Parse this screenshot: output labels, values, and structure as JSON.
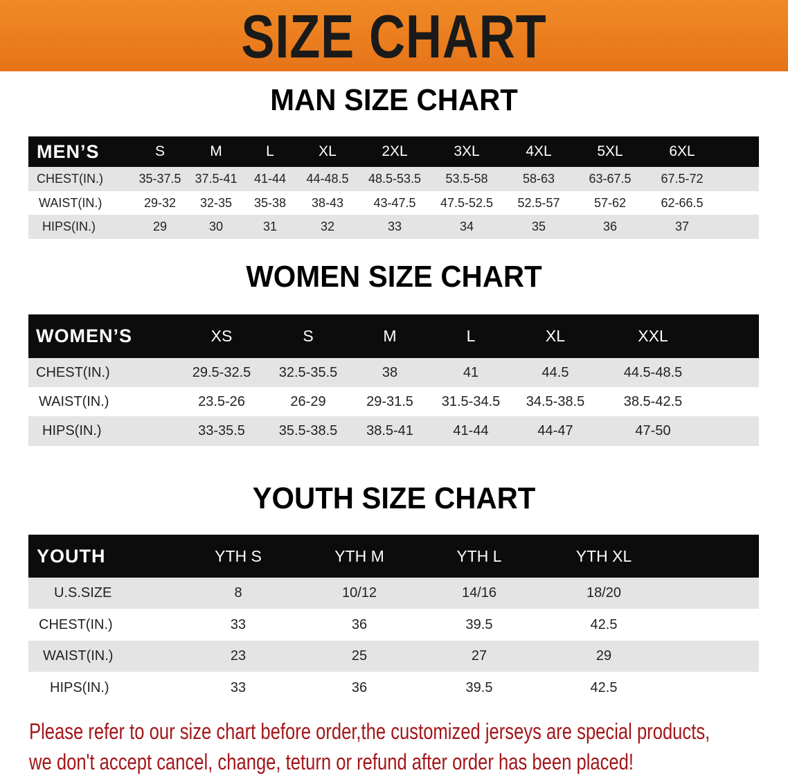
{
  "banner": {
    "title": "SIZE CHART",
    "color": "#e97b1f"
  },
  "men": {
    "title": "MAN SIZE CHART",
    "header": "MEN’S",
    "sizes": [
      "S",
      "M",
      "L",
      "XL",
      "2XL",
      "3XL",
      "4XL",
      "5XL",
      "6XL"
    ],
    "rows": [
      {
        "label": "CHEST(IN.)",
        "values": [
          "35-37.5",
          "37.5-41",
          "41-44",
          "44-48.5",
          "48.5-53.5",
          "53.5-58",
          "58-63",
          "63-67.5",
          "67.5-72"
        ]
      },
      {
        "label": "WAIST(IN.)",
        "values": [
          "29-32",
          "32-35",
          "35-38",
          "38-43",
          "43-47.5",
          "47.5-52.5",
          "52.5-57",
          "57-62",
          "62-66.5"
        ]
      },
      {
        "label": "HIPS(IN.)",
        "values": [
          "29",
          "30",
          "31",
          "32",
          "33",
          "34",
          "35",
          "36",
          "37"
        ]
      }
    ]
  },
  "women": {
    "title": "WOMEN SIZE CHART",
    "header": "WOMEN’S",
    "sizes": [
      "XS",
      "S",
      "M",
      "L",
      "XL",
      "XXL"
    ],
    "rows": [
      {
        "label": "CHEST(IN.)",
        "values": [
          "29.5-32.5",
          "32.5-35.5",
          "38",
          "41",
          "44.5",
          "44.5-48.5"
        ]
      },
      {
        "label": "WAIST(IN.)",
        "values": [
          "23.5-26",
          "26-29",
          "29-31.5",
          "31.5-34.5",
          "34.5-38.5",
          "38.5-42.5"
        ]
      },
      {
        "label": "HIPS(IN.)",
        "values": [
          "33-35.5",
          "35.5-38.5",
          "38.5-41",
          "41-44",
          "44-47",
          "47-50"
        ]
      }
    ]
  },
  "youth": {
    "title": "YOUTH SIZE CHART",
    "header": "YOUTH",
    "sizes": [
      "YTH S",
      "YTH M",
      "YTH L",
      "YTH XL"
    ],
    "rows": [
      {
        "label": "U.S.SIZE",
        "values": [
          "8",
          "10/12",
          "14/16",
          "18/20"
        ]
      },
      {
        "label": "CHEST(IN.)",
        "values": [
          "33",
          "36",
          "39.5",
          "42.5"
        ]
      },
      {
        "label": "WAIST(IN.)",
        "values": [
          "23",
          "25",
          "27",
          "29"
        ]
      },
      {
        "label": "HIPS(IN.)",
        "values": [
          "33",
          "36",
          "39.5",
          "42.5"
        ]
      }
    ]
  },
  "notice": {
    "line1": "Please refer to our size chart before order,the customized jerseys are special products,",
    "line2": "we don't accept cancel, change, teturn or refund after order has been placed!",
    "color": "#a3161a"
  }
}
